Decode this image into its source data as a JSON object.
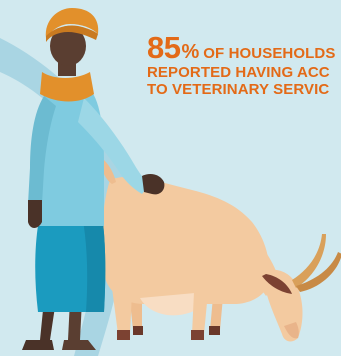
{
  "headline": {
    "percentage": "85",
    "percent_sign": "%",
    "line1": "of households",
    "line2": "reported having acc",
    "line3": "to veterinary servic"
  },
  "colors": {
    "background": "#d1e9ef",
    "accent_orange": "#e36a17",
    "swoosh": "#a9d5e3",
    "turban": "#e2902b",
    "skin": "#5a3e31",
    "shirt": "#7fcbe0",
    "sarong": "#1b9bbf",
    "goat_body": "#f3caa0",
    "goat_dark": "#7c4232"
  },
  "illustration": {
    "figures": [
      "herder-figure",
      "goat-figure"
    ]
  }
}
